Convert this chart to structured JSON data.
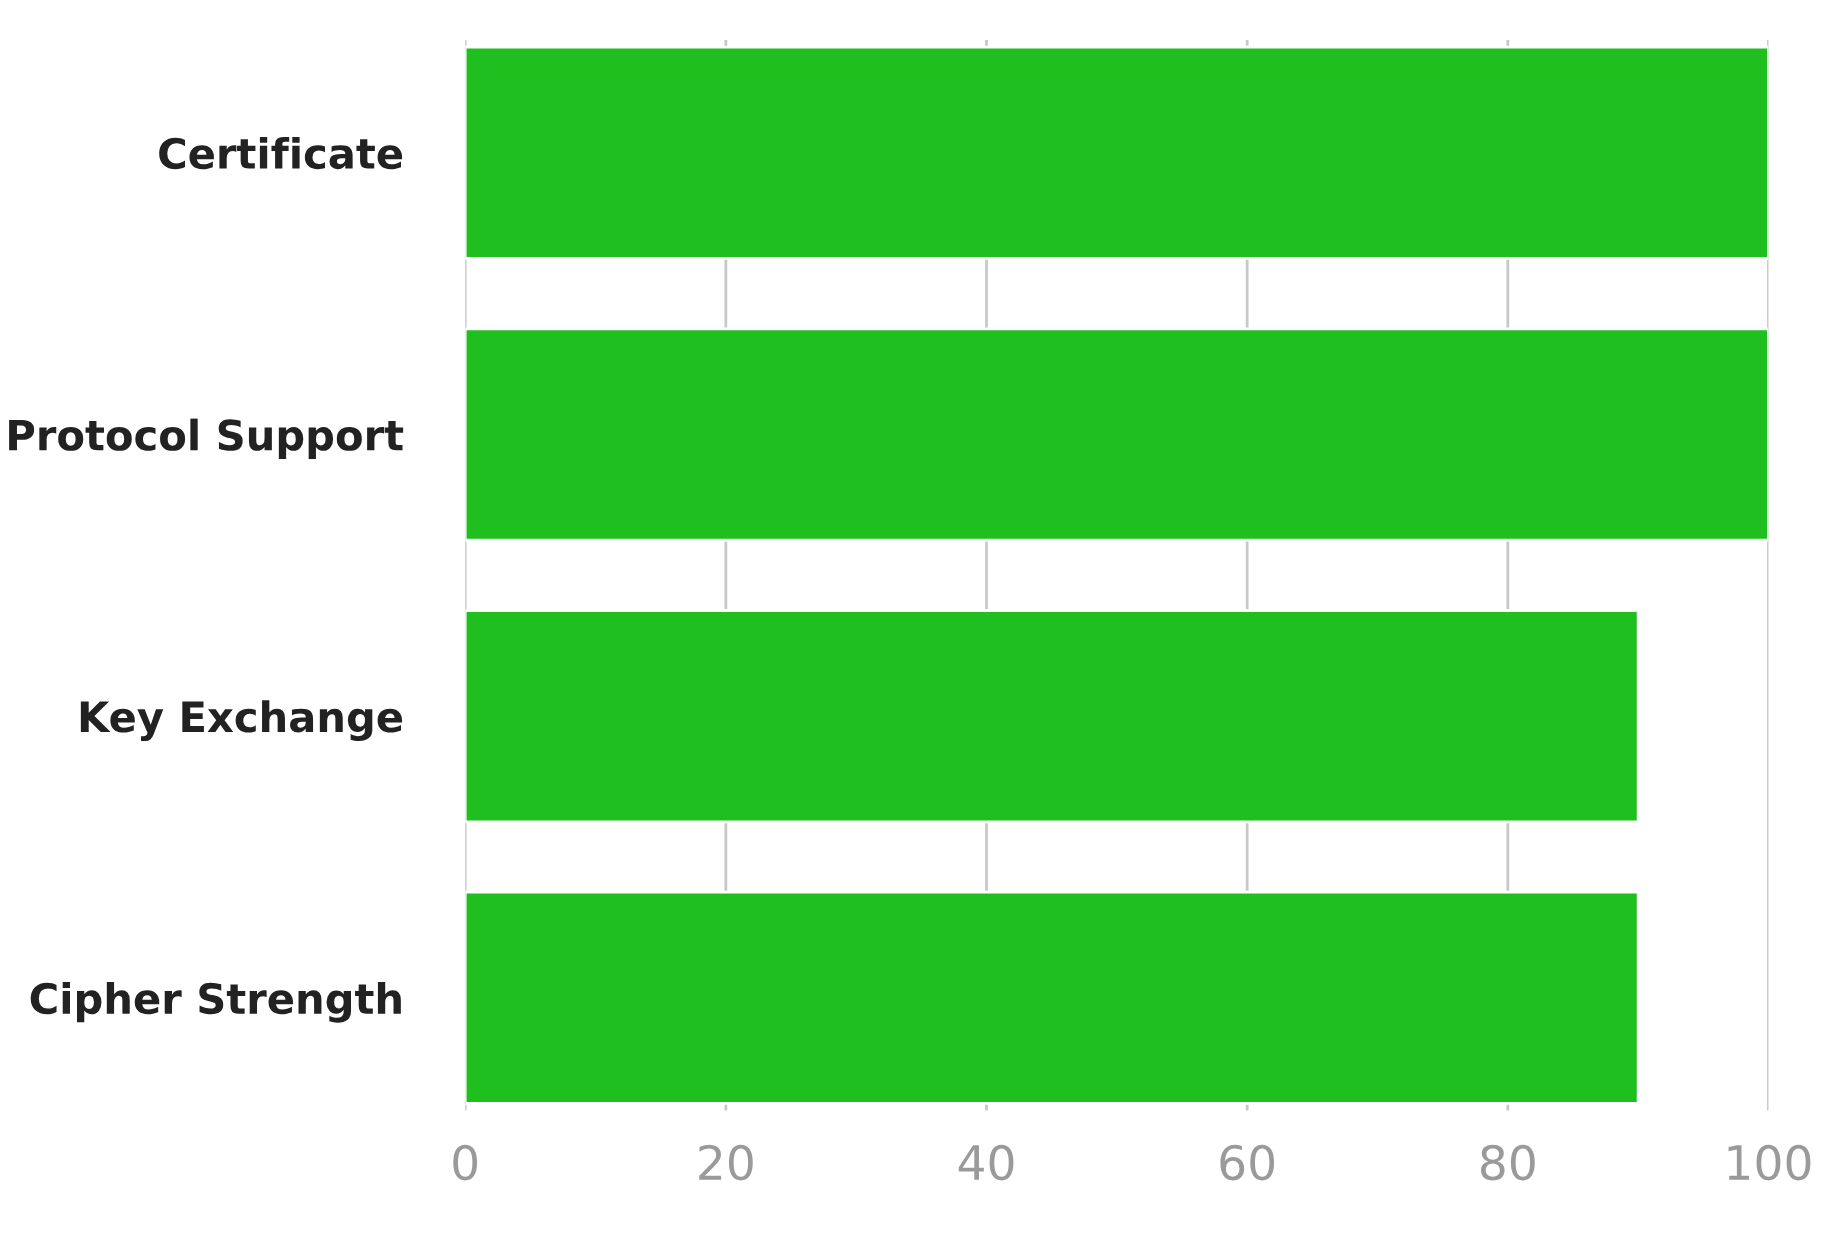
{
  "chart_data": {
    "type": "bar",
    "orientation": "horizontal",
    "categories": [
      "Certificate",
      "Protocol Support",
      "Key Exchange",
      "Cipher Strength"
    ],
    "values": [
      100,
      100,
      90,
      90
    ],
    "color": "#1fbf1f",
    "xlim": [
      0,
      100
    ],
    "xticks": [
      0,
      20,
      40,
      60,
      80,
      100
    ],
    "grid": "x",
    "legend": false
  }
}
